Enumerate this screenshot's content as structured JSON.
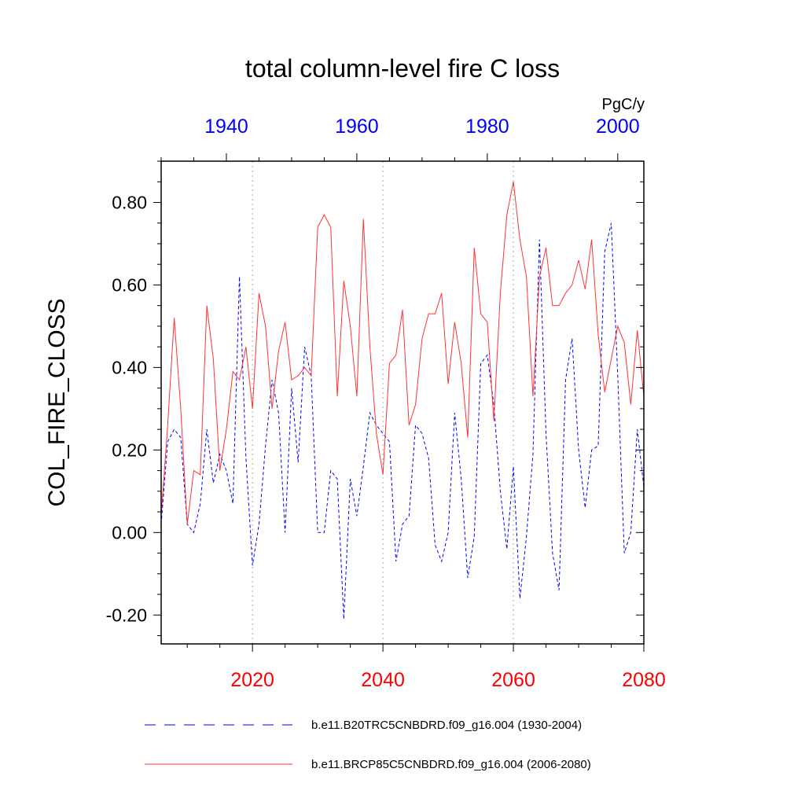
{
  "chart_data": {
    "type": "line",
    "title": "total column-level fire C loss",
    "units": "PgC/y",
    "ylabel": "COL_FIRE_CLOSS",
    "ylim": [
      -0.27,
      0.9
    ],
    "yticks": [
      -0.2,
      0.0,
      0.2,
      0.4,
      0.6,
      0.8
    ],
    "ytick_labels": [
      "-0.20",
      "0.00",
      "0.20",
      "0.40",
      "0.60",
      "0.80"
    ],
    "bottom_axis": {
      "range": [
        2006,
        2080
      ],
      "ticks": [
        2020,
        2040,
        2060,
        2080
      ],
      "labels": [
        "2020",
        "2040",
        "2060",
        "2080"
      ],
      "color": "#ff0000"
    },
    "top_axis": {
      "range": [
        1930,
        2004
      ],
      "ticks": [
        1940,
        1960,
        1980,
        2000
      ],
      "labels": [
        "1940",
        "1960",
        "1980",
        "2000"
      ],
      "color": "#0000ff"
    },
    "gridlines_x": [
      2020,
      2040,
      2060
    ],
    "series": [
      {
        "name": "b.e11.B20TRC5CNBDRD.f09_g16.004 (1930-2004)",
        "axis": "top",
        "style": "dashed",
        "color": "#0000ff",
        "x_start": 1930,
        "values": [
          0.02,
          0.22,
          0.25,
          0.23,
          0.02,
          0.0,
          0.07,
          0.25,
          0.12,
          0.19,
          0.15,
          0.07,
          0.62,
          0.18,
          -0.08,
          0.02,
          0.21,
          0.37,
          0.29,
          0.0,
          0.35,
          0.17,
          0.45,
          0.38,
          0.0,
          0.0,
          0.15,
          0.13,
          -0.21,
          0.13,
          0.04,
          0.16,
          0.29,
          0.26,
          0.24,
          0.22,
          -0.07,
          0.02,
          0.04,
          0.26,
          0.24,
          0.18,
          -0.03,
          -0.07,
          0.0,
          0.29,
          0.13,
          -0.11,
          -0.01,
          0.41,
          0.43,
          0.31,
          0.1,
          -0.04,
          0.16,
          -0.16,
          -0.01,
          0.19,
          0.71,
          0.24,
          -0.05,
          -0.14,
          0.37,
          0.47,
          0.2,
          0.06,
          0.2,
          0.21,
          0.68,
          0.75,
          0.38,
          -0.05,
          0.0,
          0.25,
          0.11
        ]
      },
      {
        "name": "b.e11.BRCP85C5CNBDRD.f09_g16.004 (2006-2080)",
        "axis": "bottom",
        "style": "solid",
        "color": "#ff3333",
        "x_start": 2006,
        "values": [
          0.04,
          0.26,
          0.52,
          0.3,
          0.02,
          0.15,
          0.14,
          0.55,
          0.42,
          0.15,
          0.25,
          0.39,
          0.37,
          0.45,
          0.3,
          0.58,
          0.5,
          0.3,
          0.44,
          0.51,
          0.37,
          0.38,
          0.4,
          0.38,
          0.74,
          0.77,
          0.74,
          0.33,
          0.61,
          0.5,
          0.33,
          0.76,
          0.45,
          0.24,
          0.14,
          0.41,
          0.43,
          0.54,
          0.26,
          0.31,
          0.47,
          0.53,
          0.53,
          0.58,
          0.36,
          0.51,
          0.41,
          0.23,
          0.69,
          0.53,
          0.51,
          0.27,
          0.58,
          0.77,
          0.85,
          0.71,
          0.62,
          0.33,
          0.62,
          0.69,
          0.55,
          0.55,
          0.58,
          0.6,
          0.66,
          0.59,
          0.71,
          0.48,
          0.34,
          0.42,
          0.5,
          0.46,
          0.31,
          0.49,
          0.33
        ]
      }
    ],
    "legend": [
      {
        "label": "b.e11.B20TRC5CNBDRD.f09_g16.004 (1930-2004)",
        "style": "dashed",
        "color": "#0000ff"
      },
      {
        "label": "b.e11.BRCP85C5CNBDRD.f09_g16.004 (2006-2080)",
        "style": "solid",
        "color": "#ff3333"
      }
    ]
  }
}
